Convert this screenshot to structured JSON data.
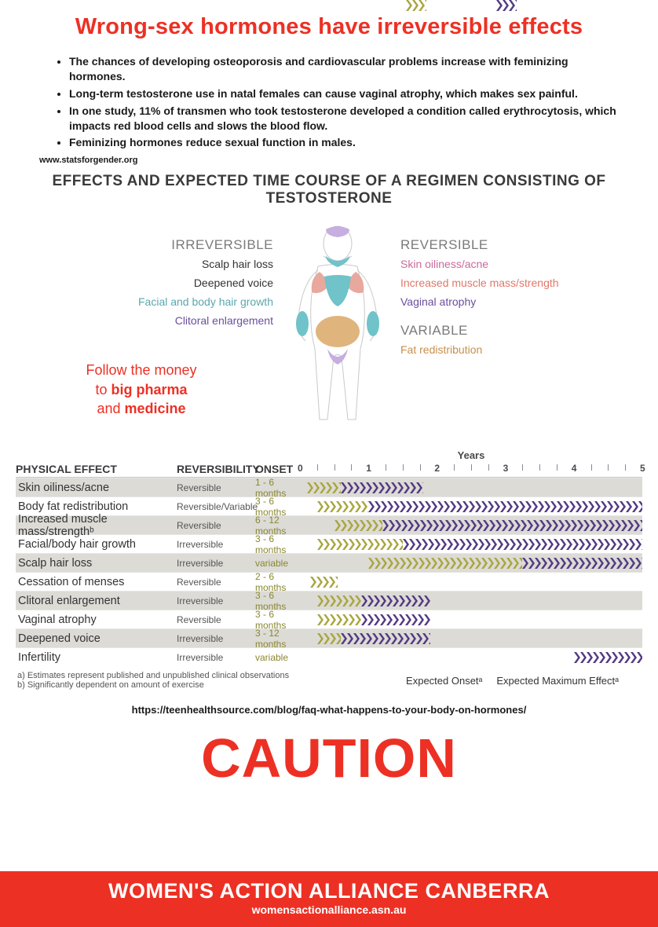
{
  "colors": {
    "accent_red": "#ed3024",
    "teal": "#6fc3c9",
    "pink": "#e8a89d",
    "tan": "#e0b47d",
    "lilac": "#c6aee0",
    "olive": "#a9a63f",
    "purple": "#533a82",
    "row_shade": "#dcdbd6",
    "effect_pink": "#c96a9a",
    "effect_salmon": "#e0776a",
    "effect_purple": "#6a4f9e",
    "effect_teal": "#5aa7ad",
    "effect_tan": "#c98f4d",
    "heading_grey": "#7a7a7a"
  },
  "header": {
    "title": "Wrong-sex hormones have irreversible effects"
  },
  "bullets": {
    "items": [
      "The chances of developing osteoporosis and cardiovascular problems increase with feminizing hormones.",
      "Long-term testosterone use in natal females can cause vaginal atrophy, which makes sex painful.",
      "In one study, 11% of transmen who took testosterone developed a condition called erythrocytosis, which impacts red blood cells and slows the blood flow.",
      "Feminizing hormones reduce sexual function in males."
    ],
    "source": "www.statsforgender.org"
  },
  "infographic": {
    "title": "EFFECTS AND EXPECTED TIME COURSE OF A REGIMEN CONSISTING OF TESTOSTERONE",
    "irreversible": {
      "heading": "IRREVERSIBLE",
      "items": [
        {
          "text": "Scalp hair loss",
          "color": "#333333"
        },
        {
          "text": "Deepened voice",
          "color": "#333333"
        },
        {
          "text": "Facial and body hair growth",
          "color": "#5aa7ad"
        },
        {
          "text": "Clitoral enlargement",
          "color": "#6a4f9e"
        }
      ]
    },
    "reversible": {
      "heading": "REVERSIBLE",
      "items": [
        {
          "text": "Skin oiliness/acne",
          "color": "#c96a9a"
        },
        {
          "text": "Increased muscle mass/strength",
          "color": "#e0776a"
        },
        {
          "text": "Vaginal atrophy",
          "color": "#6a4f9e"
        }
      ]
    },
    "variable": {
      "heading": "VARIABLE",
      "items": [
        {
          "text": "Fat redistribution",
          "color": "#c98f4d"
        }
      ]
    },
    "follow_money": {
      "line1": "Follow the money",
      "line2_a": "to ",
      "line2_b": "big pharma",
      "line3_a": "and ",
      "line3_b": "medicine"
    }
  },
  "timeline": {
    "years_label": "Years",
    "years_max": 5,
    "col_headers": {
      "pe": "PHYSICAL EFFECT",
      "rv": "REVERSIBILITY",
      "on": "ONSET"
    },
    "rows": [
      {
        "pe": "Skin oiliness/acne",
        "rv": "Reversible",
        "on": "1 - 6 months",
        "olive_start": 0.02,
        "olive_end": 0.12,
        "purple_start": 0.12,
        "purple_end": 0.36,
        "shade": true
      },
      {
        "pe": "Body fat redistribution",
        "rv": "Reversible/Variable",
        "on": "3 - 6 months",
        "olive_start": 0.05,
        "olive_end": 0.2,
        "purple_start": 0.2,
        "purple_end": 1.0,
        "shade": false
      },
      {
        "pe": "Increased muscle mass/strengthᵇ",
        "rv": "Reversible",
        "on": "6 - 12 months",
        "olive_start": 0.1,
        "olive_end": 0.24,
        "purple_start": 0.24,
        "purple_end": 1.0,
        "shade": true
      },
      {
        "pe": "Facial/body hair growth",
        "rv": "Irreversible",
        "on": "3 - 6 months",
        "olive_start": 0.05,
        "olive_end": 0.3,
        "purple_start": 0.3,
        "purple_end": 1.0,
        "shade": false
      },
      {
        "pe": "Scalp hair loss",
        "rv": "Irreversible",
        "on": "variable",
        "olive_start": 0.2,
        "olive_end": 0.65,
        "purple_start": 0.65,
        "purple_end": 1.0,
        "shade": true
      },
      {
        "pe": "Cessation of menses",
        "rv": "Reversible",
        "on": "2 - 6 months",
        "olive_start": 0.03,
        "olive_end": 0.11,
        "purple_start": 0,
        "purple_end": 0,
        "shade": false
      },
      {
        "pe": "Clitoral enlargement",
        "rv": "Irreversible",
        "on": "3 - 6 months",
        "olive_start": 0.05,
        "olive_end": 0.18,
        "purple_start": 0.18,
        "purple_end": 0.38,
        "shade": true
      },
      {
        "pe": "Vaginal atrophy",
        "rv": "Reversible",
        "on": "3 - 6 months",
        "olive_start": 0.05,
        "olive_end": 0.18,
        "purple_start": 0.18,
        "purple_end": 0.38,
        "shade": false
      },
      {
        "pe": "Deepened voice",
        "rv": "Irreversible",
        "on": "3 - 12 months",
        "olive_start": 0.05,
        "olive_end": 0.12,
        "purple_start": 0.12,
        "purple_end": 0.38,
        "shade": true
      },
      {
        "pe": "Infertility",
        "rv": "Irreversible",
        "on": "variable",
        "olive_start": 0,
        "olive_end": 0,
        "purple_start": 0.8,
        "purple_end": 1.0,
        "shade": false
      }
    ],
    "footnotes": {
      "a": "a) Estimates represent published and unpublished clinical observations",
      "b": "b) Significantly dependent on amount of exercise"
    },
    "legend": {
      "onset": "Expected Onsetᵃ",
      "max": "Expected Maximum Effectᵃ"
    },
    "source_url": "https://teenhealthsource.com/blog/faq-what-happens-to-your-body-on-hormones/"
  },
  "caution": "CAUTION",
  "footer": {
    "org": "WOMEN'S ACTION ALLIANCE CANBERRA",
    "url": "womensactionalliance.asn.au"
  }
}
